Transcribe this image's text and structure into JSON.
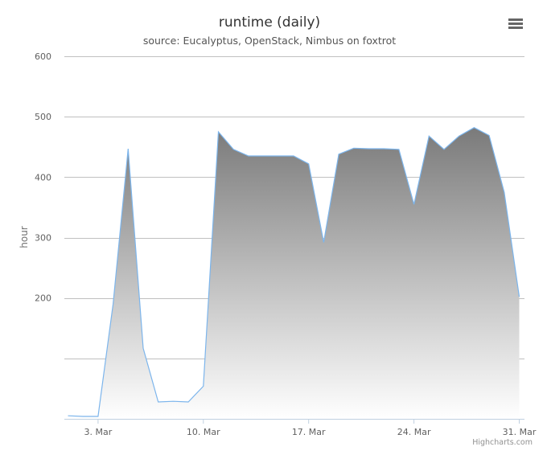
{
  "chart_data": {
    "type": "area",
    "title": "runtime (daily)",
    "subtitle": "source: Eucalyptus, OpenStack, Nimbus on foxtrot",
    "xlabel": "",
    "ylabel": "hour",
    "ylim": [
      0,
      600
    ],
    "y_ticks": [
      600,
      500,
      400,
      300,
      200
    ],
    "y_gridlines": [
      100,
      200,
      300,
      400,
      500,
      600
    ],
    "x_start": "2014-03-01",
    "x_ticks": [
      {
        "date": "2014-03-03",
        "label": "3. Mar"
      },
      {
        "date": "2014-03-10",
        "label": "10. Mar"
      },
      {
        "date": "2014-03-17",
        "label": "17. Mar"
      },
      {
        "date": "2014-03-24",
        "label": "24. Mar"
      },
      {
        "date": "2014-03-31",
        "label": "31. Mar"
      }
    ],
    "grid": true,
    "legend": "none",
    "series": [
      {
        "color": "#7cb5ec",
        "x": [
          "2014-03-01",
          "2014-03-02",
          "2014-03-03",
          "2014-03-04",
          "2014-03-05",
          "2014-03-06",
          "2014-03-07",
          "2014-03-08",
          "2014-03-09",
          "2014-03-10",
          "2014-03-11",
          "2014-03-12",
          "2014-03-13",
          "2014-03-14",
          "2014-03-15",
          "2014-03-16",
          "2014-03-17",
          "2014-03-18",
          "2014-03-19",
          "2014-03-20",
          "2014-03-21",
          "2014-03-22",
          "2014-03-23",
          "2014-03-24",
          "2014-03-25",
          "2014-03-26",
          "2014-03-27",
          "2014-03-28",
          "2014-03-29",
          "2014-03-30",
          "2014-03-31"
        ],
        "values": [
          5,
          4,
          4,
          190,
          447,
          117,
          28,
          29,
          28,
          54,
          475,
          446,
          435,
          435,
          435,
          435,
          422,
          292,
          438,
          448,
          447,
          447,
          446,
          355,
          468,
          446,
          468,
          482,
          469,
          375,
          202
        ]
      }
    ]
  },
  "menu_icon": "hamburger-menu-icon",
  "credits": "Highcharts.com"
}
